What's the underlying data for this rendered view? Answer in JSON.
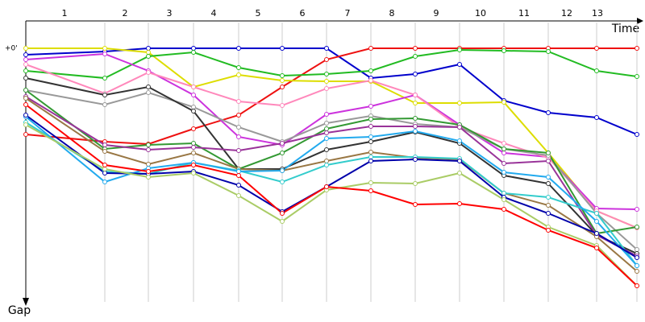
{
  "chart_data": {
    "type": "line",
    "x_label": "Time",
    "y_label": "Gap",
    "x": [
      0,
      98,
      152,
      208,
      264,
      318,
      373,
      428,
      483,
      538,
      593,
      648,
      708,
      758
    ],
    "xlim": [
      0,
      768
    ],
    "xticks": [
      {
        "value": 48,
        "label": "1"
      },
      {
        "value": 123,
        "label": "2"
      },
      {
        "value": 178,
        "label": "3"
      },
      {
        "value": 233,
        "label": "4"
      },
      {
        "value": 288,
        "label": "5"
      },
      {
        "value": 343,
        "label": "6"
      },
      {
        "value": 399,
        "label": "7"
      },
      {
        "value": 454,
        "label": "8"
      },
      {
        "value": 509,
        "label": "9"
      },
      {
        "value": 564,
        "label": "10"
      },
      {
        "value": 618,
        "label": "11"
      },
      {
        "value": 671,
        "label": "12"
      },
      {
        "value": 709,
        "label": "13"
      }
    ],
    "ylim": [
      0,
      315
    ],
    "yticks": [
      {
        "value": 0,
        "label": "+0'"
      }
    ],
    "series": [
      {
        "color": "#0000cc",
        "values": [
          8,
          4,
          0,
          0,
          0,
          0,
          0,
          37,
          32,
          20,
          65,
          80,
          86,
          107
        ]
      },
      {
        "color": "#ee1111",
        "values": [
          107,
          116,
          119,
          100,
          83,
          48,
          14,
          0,
          0,
          0,
          0,
          0,
          0,
          0
        ]
      },
      {
        "color": "#dddd00",
        "values": [
          0,
          0,
          5,
          48,
          33,
          40,
          41,
          41,
          68,
          68,
          67,
          130,
          202,
          223
        ]
      },
      {
        "color": "#22bb22",
        "values": [
          28,
          37,
          10,
          5,
          24,
          34,
          32,
          28,
          10,
          2,
          3,
          4,
          28,
          35
        ]
      },
      {
        "color": "#cc33dd",
        "values": [
          14,
          7,
          28,
          58,
          110,
          120,
          82,
          72,
          58,
          95,
          130,
          135,
          199,
          200
        ]
      },
      {
        "color": "#ff88bb",
        "values": [
          20,
          56,
          30,
          48,
          66,
          71,
          50,
          40,
          58,
          98,
          118,
          136,
          202,
          223
        ]
      },
      {
        "color": "#999999",
        "values": [
          52,
          70,
          55,
          73,
          98,
          116,
          93,
          84,
          94,
          98,
          125,
          133,
          205,
          250
        ]
      },
      {
        "color": "#333333",
        "values": [
          37,
          58,
          48,
          78,
          150,
          150,
          126,
          116,
          104,
          118,
          158,
          168,
          232,
          255
        ]
      },
      {
        "color": "#339933",
        "values": [
          52,
          125,
          120,
          118,
          150,
          130,
          100,
          88,
          87,
          95,
          125,
          130,
          230,
          222
        ]
      },
      {
        "color": "#993399",
        "values": [
          60,
          120,
          126,
          123,
          127,
          118,
          105,
          97,
          97,
          98,
          143,
          140,
          232,
          258
        ]
      },
      {
        "color": "#997744",
        "values": [
          62,
          128,
          144,
          130,
          150,
          152,
          140,
          129,
          136,
          138,
          180,
          195,
          234,
          277
        ]
      },
      {
        "color": "#33cccc",
        "values": [
          92,
          153,
          156,
          142,
          152,
          166,
          145,
          135,
          135,
          137,
          180,
          185,
          205,
          270
        ]
      },
      {
        "color": "#22aaee",
        "values": [
          85,
          166,
          149,
          142,
          153,
          152,
          112,
          110,
          103,
          115,
          154,
          160,
          215,
          270
        ]
      },
      {
        "color": "#0000aa",
        "values": [
          83,
          155,
          156,
          153,
          170,
          203,
          172,
          140,
          138,
          140,
          185,
          205,
          230,
          260
        ]
      },
      {
        "color": "#aacc66",
        "values": [
          95,
          150,
          160,
          155,
          183,
          215,
          176,
          167,
          168,
          155,
          188,
          222,
          245,
          295
        ]
      },
      {
        "color": "#ff0000",
        "values": [
          70,
          145,
          153,
          145,
          158,
          205,
          172,
          177,
          194,
          193,
          200,
          226,
          248,
          295
        ]
      }
    ]
  }
}
